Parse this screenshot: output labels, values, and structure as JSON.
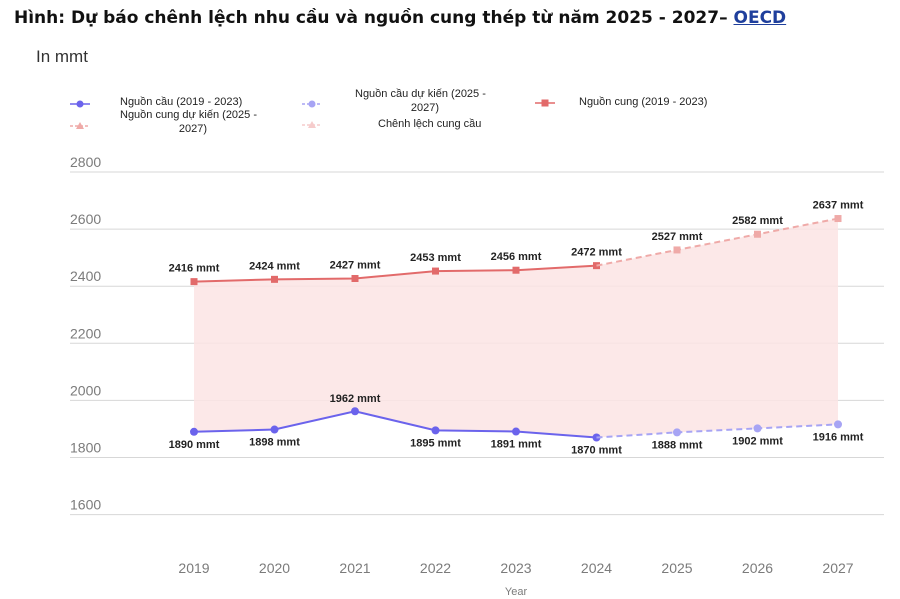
{
  "title": {
    "text": "Hình: Dự báo chênh lệch nhu cầu và nguồn cung thép từ năm 2025 - 2027– ",
    "source": "OECD"
  },
  "colors": {
    "demand": "#6b63ec",
    "demand_forecast": "#a7a4f4",
    "supply": "#e26a6a",
    "supply_forecast": "#efaaa8",
    "gap": "#fbe4e4",
    "gap_legend": "#f6cccc",
    "grid": "#d7d7d7",
    "tick": "#7b7b7b",
    "label": "#222222"
  },
  "chart_data": {
    "type": "line",
    "title": "Hình: Dự báo chênh lệch nhu cầu và nguồn cung thép từ năm 2025 - 2027– OECD",
    "ylabel": "In mmt",
    "xlabel": "Year",
    "ylim": [
      1400,
      2800
    ],
    "yticks": [
      "2800",
      "2600",
      "2400",
      "2200",
      "2000",
      "1800",
      "1600"
    ],
    "ytick_values": [
      2800,
      2600,
      2400,
      2200,
      2000,
      1800,
      1600
    ],
    "categories": [
      "2019",
      "2020",
      "2021",
      "2022",
      "2023",
      "2024",
      "2025",
      "2026",
      "2027"
    ],
    "legend": [
      {
        "name": "Nguồn cầu (2019 - 2023)",
        "key": "demand"
      },
      {
        "name": "Nguồn cầu dự kiến (2025 - 2027)",
        "line1": "Nguồn cầu dự kiến (2025 -",
        "line2": "2027)",
        "key": "demand_forecast"
      },
      {
        "name": "Nguồn cung (2019 - 2023)",
        "key": "supply"
      },
      {
        "name": "Nguồn cung dự kiến (2025 - 2027)",
        "line1": "Nguồn cung dự kiến (2025 -",
        "line2": "2027)",
        "key": "supply_forecast"
      },
      {
        "name": "Chênh lệch cung cầu",
        "key": "gap"
      }
    ],
    "series": [
      {
        "name": "Nguồn cầu (2019 - 2023)",
        "key": "demand",
        "x": [
          "2019",
          "2020",
          "2021",
          "2022",
          "2023",
          "2024"
        ],
        "values": [
          1890,
          1898,
          1962,
          1895,
          1891,
          1870
        ]
      },
      {
        "name": "Nguồn cầu dự kiến (2025 - 2027)",
        "key": "demand_forecast",
        "x": [
          "2024",
          "2025",
          "2026",
          "2027"
        ],
        "values": [
          1870,
          1888,
          1902,
          1916
        ]
      },
      {
        "name": "Nguồn cung (2019 - 2023)",
        "key": "supply",
        "x": [
          "2019",
          "2020",
          "2021",
          "2022",
          "2023",
          "2024"
        ],
        "values": [
          2416,
          2424,
          2427,
          2453,
          2456,
          2472
        ]
      },
      {
        "name": "Nguồn cung dự kiến (2025 - 2027)",
        "key": "supply_forecast",
        "x": [
          "2024",
          "2025",
          "2026",
          "2027"
        ],
        "values": [
          2472,
          2527,
          2582,
          2637
        ]
      }
    ],
    "supply_labels": [
      "2416 mmt",
      "2424 mmt",
      "2427 mmt",
      "2453 mmt",
      "2456 mmt",
      "2472 mmt",
      "2527 mmt",
      "2582 mmt",
      "2637 mmt"
    ],
    "demand_labels": [
      "1890 mmt",
      "1898 mmt",
      "1962 mmt",
      "1895 mmt",
      "1891 mmt",
      "1870 mmt",
      "1888 mmt",
      "1902 mmt",
      "1916 mmt"
    ]
  }
}
